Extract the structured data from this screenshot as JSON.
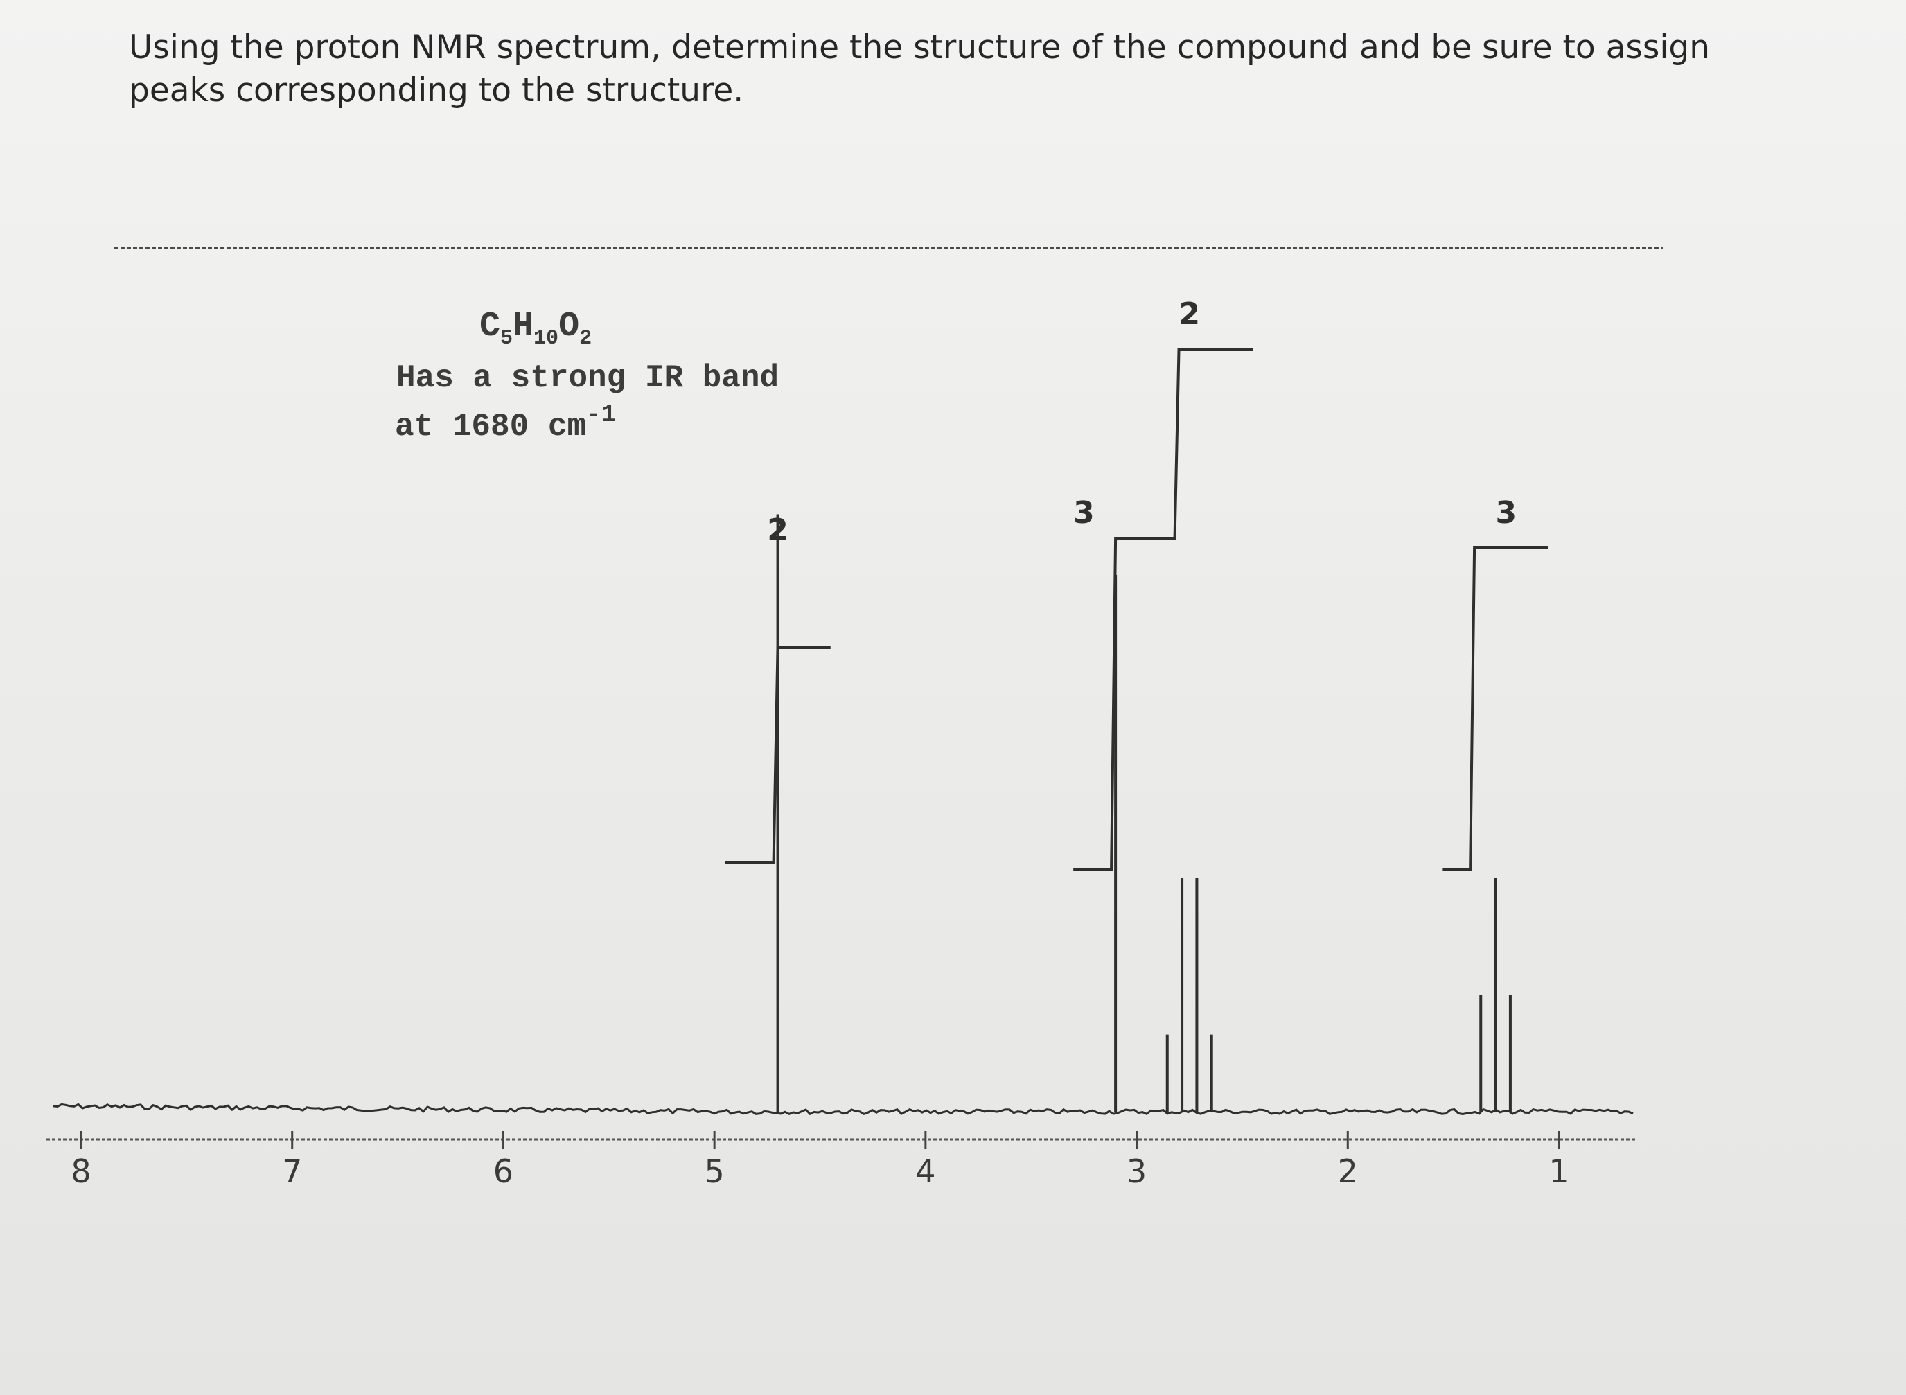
{
  "question": "Using the proton NMR spectrum, determine the structure of the compound and be sure to assign peaks corresponding to the structure.",
  "compound": {
    "formula_main": "C",
    "formula_sub1": "5",
    "formula_h": "H",
    "formula_sub2": "10",
    "formula_o": "O",
    "formula_sub3": "2",
    "ir_line1": "Has a strong IR band",
    "ir_line2": "at 1680 cm",
    "ir_sup": "-1"
  },
  "colors": {
    "ink": "#2f2f2f",
    "paper": "#ececea"
  },
  "chart_data": {
    "type": "line",
    "title": "",
    "xlabel": "",
    "ylabel": "",
    "x_axis_reversed": true,
    "xlim": [
      8.0,
      0.7
    ],
    "x_ticks": [
      {
        "value": 8,
        "label": "8"
      },
      {
        "value": 7,
        "label": "7"
      },
      {
        "value": 6,
        "label": "6"
      },
      {
        "value": 5,
        "label": "5"
      },
      {
        "value": 4,
        "label": "4"
      },
      {
        "value": 3,
        "label": "3"
      },
      {
        "value": 2,
        "label": "2"
      },
      {
        "value": 1,
        "label": "1"
      }
    ],
    "peaks": [
      {
        "shift": 4.7,
        "multiplicity": "singlet",
        "height": 0.69
      },
      {
        "shift": 3.1,
        "multiplicity": "singlet",
        "height": 0.62
      },
      {
        "shift": 2.75,
        "multiplicity": "quartet",
        "height": 0.27
      },
      {
        "shift": 1.3,
        "multiplicity": "triplet",
        "height": 0.27
      }
    ],
    "integrations": [
      {
        "label": "2",
        "shift": 4.7
      },
      {
        "label": "3",
        "shift": 3.1
      },
      {
        "label": "2",
        "shift": 2.75
      },
      {
        "label": "3",
        "shift": 1.3
      }
    ]
  }
}
